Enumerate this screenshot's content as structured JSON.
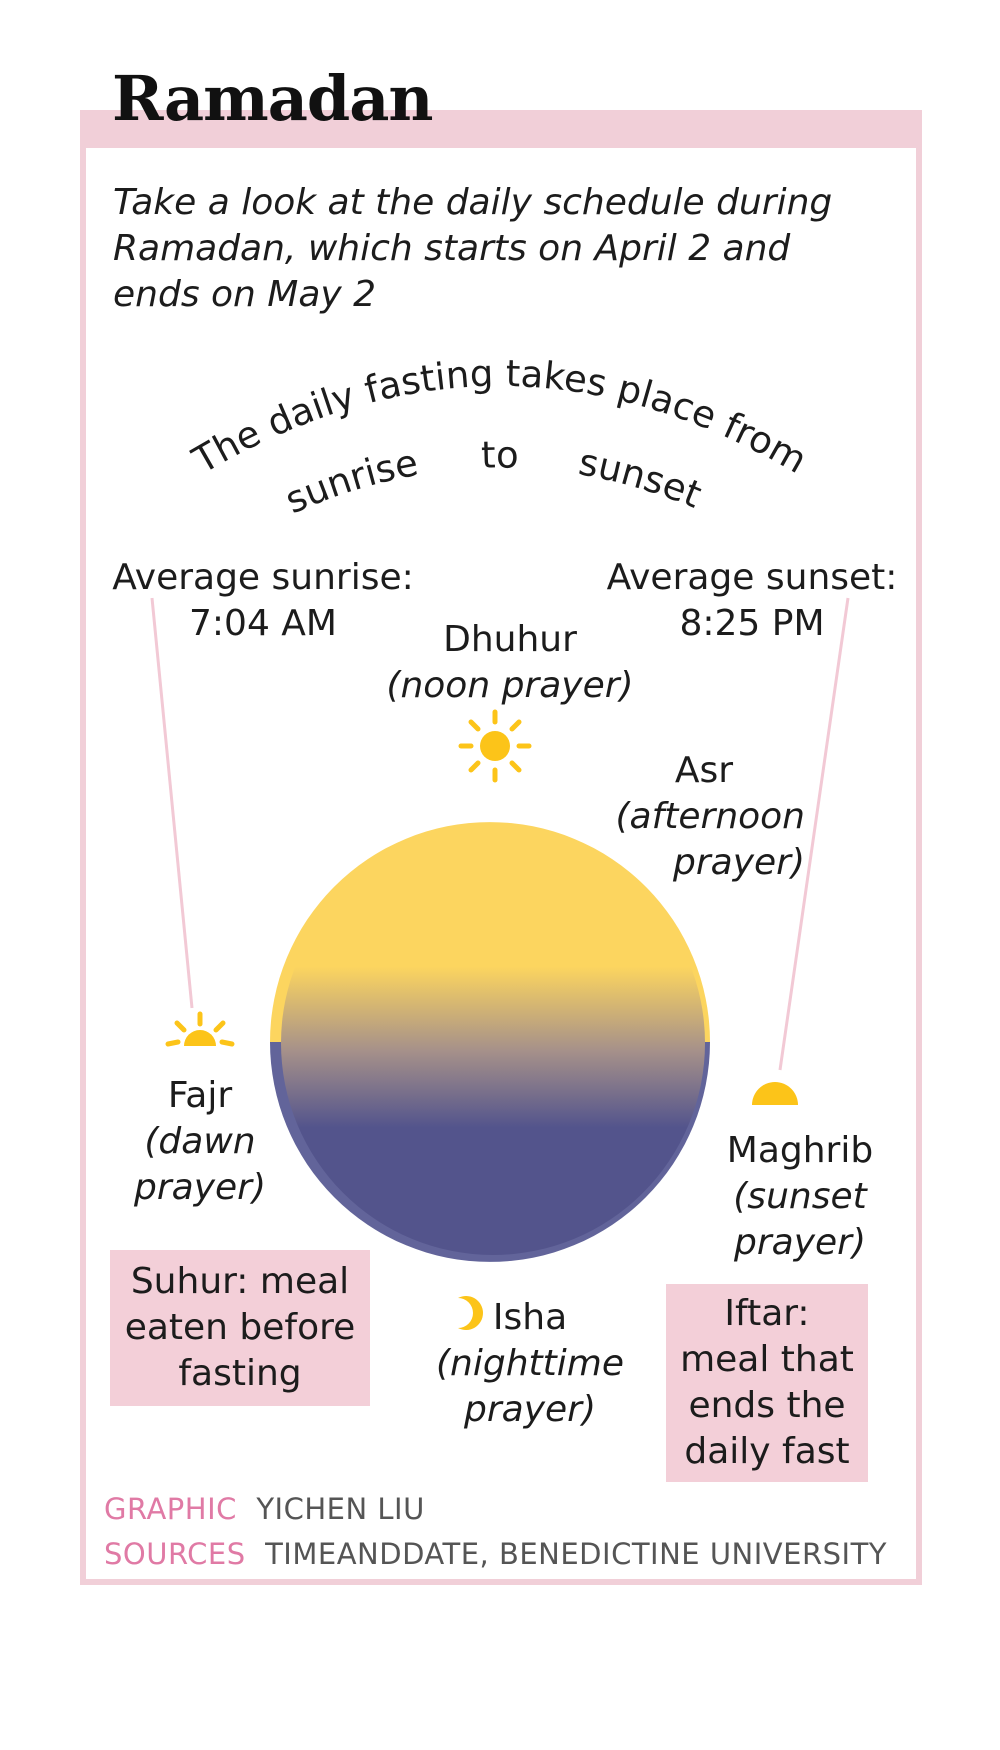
{
  "header": {
    "title": "Ramadan",
    "intro": "Take a look at the daily schedule during Ramadan, which starts on April 2 and ends on May 2"
  },
  "fasting_arc": {
    "line1": "The daily fasting takes place from",
    "word_sunrise": "sunrise",
    "word_to": "to",
    "word_sunset": "sunset"
  },
  "sunrise": {
    "label": "Average sunrise:",
    "time": "7:04 AM"
  },
  "sunset": {
    "label": "Average sunset:",
    "time": "8:25 PM"
  },
  "prayers": {
    "dhuhur": {
      "name": "Dhuhur",
      "desc": "(noon prayer)"
    },
    "asr": {
      "name": "Asr",
      "desc1": "(afternoon",
      "desc2": "prayer)"
    },
    "fajr": {
      "name": "Fajr",
      "desc1": "(dawn",
      "desc2": "prayer)"
    },
    "maghrib": {
      "name": "Maghrib",
      "desc1": "(sunset",
      "desc2": "prayer)"
    },
    "isha": {
      "name": "Isha",
      "desc1": "(nighttime",
      "desc2": "prayer)"
    }
  },
  "meals": {
    "suhur": [
      "Suhur: meal",
      "eaten before",
      "fasting"
    ],
    "iftar": [
      "Iftar:",
      "meal that",
      "ends the",
      "daily fast"
    ]
  },
  "credits": {
    "graphic_label": "GRAPHIC",
    "graphic_value": "YICHEN LIU",
    "sources_label": "SOURCES",
    "sources_value": "TIMEANDDATE, BENEDICTINE UNIVERSITY"
  },
  "icons": [
    "sun-icon",
    "sunrise-icon",
    "sunset-icon",
    "crescent-moon-icon"
  ],
  "colors": {
    "frame_pink": "#f1cfd8",
    "sun_yellow": "#fcc419",
    "day_yellow": "#fcd55f",
    "night_blue": "#53548c",
    "credit_pink": "#e07aa5"
  }
}
